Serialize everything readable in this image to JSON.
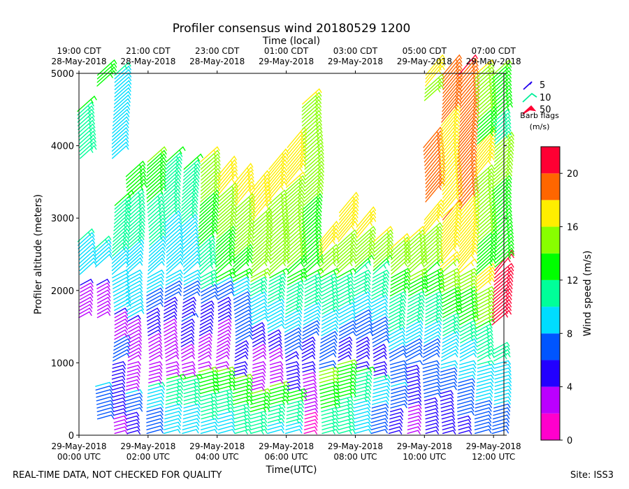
{
  "chart_data": {
    "type": "wind-barb profile",
    "title": "Profiler consensus wind 20180529 1200",
    "top_axis_label": "Time (local)",
    "bottom_axis_label": "Time(UTC)",
    "ylabel": "Profiler altitude (meters)",
    "ylim": [
      0,
      5000
    ],
    "xlim_hours_utc": [
      0,
      12.3
    ],
    "y_ticks": [
      0,
      1000,
      2000,
      3000,
      4000,
      5000
    ],
    "bottom_ticks": [
      {
        "hour": 0,
        "line1": "29-May-2018",
        "line2": "00:00 UTC"
      },
      {
        "hour": 2,
        "line1": "29-May-2018",
        "line2": "02:00 UTC"
      },
      {
        "hour": 4,
        "line1": "29-May-2018",
        "line2": "04:00 UTC"
      },
      {
        "hour": 6,
        "line1": "29-May-2018",
        "line2": "06:00 UTC"
      },
      {
        "hour": 8,
        "line1": "29-May-2018",
        "line2": "08:00 UTC"
      },
      {
        "hour": 10,
        "line1": "29-May-2018",
        "line2": "10:00 UTC"
      },
      {
        "hour": 12,
        "line1": "29-May-2018",
        "line2": "12:00 UTC"
      }
    ],
    "top_ticks": [
      {
        "hour": 0,
        "line1": "19:00 CDT",
        "line2": "28-May-2018"
      },
      {
        "hour": 2,
        "line1": "21:00 CDT",
        "line2": "28-May-2018"
      },
      {
        "hour": 4,
        "line1": "23:00 CDT",
        "line2": "28-May-2018"
      },
      {
        "hour": 6,
        "line1": "01:00 CDT",
        "line2": "29-May-2018"
      },
      {
        "hour": 8,
        "line1": "03:00 CDT",
        "line2": "29-May-2018"
      },
      {
        "hour": 10,
        "line1": "05:00 CDT",
        "line2": "29-May-2018"
      },
      {
        "hour": 12,
        "line1": "07:00 CDT",
        "line2": "29-May-2018"
      }
    ],
    "barb_legend": {
      "title": "Barb flags",
      "units": "(m/s)",
      "items": [
        {
          "label": "5",
          "color": "#2200ee"
        },
        {
          "label": "10",
          "color": "#00ee99"
        },
        {
          "label": "50",
          "color": "#ff0033"
        }
      ]
    },
    "colorbar": {
      "label": "Wind speed (m/s)",
      "range": [
        0,
        22
      ],
      "ticks": [
        "0",
        "4",
        "8",
        "12",
        "16",
        "20"
      ],
      "bins": [
        {
          "from": 0,
          "to": 2,
          "color": "#ff00cc"
        },
        {
          "from": 2,
          "to": 4,
          "color": "#bb00ff"
        },
        {
          "from": 4,
          "to": 6,
          "color": "#2200ff"
        },
        {
          "from": 6,
          "to": 8,
          "color": "#0055ff"
        },
        {
          "from": 8,
          "to": 10,
          "color": "#00ddff"
        },
        {
          "from": 10,
          "to": 12,
          "color": "#00ff99"
        },
        {
          "from": 12,
          "to": 14,
          "color": "#00ff00"
        },
        {
          "from": 14,
          "to": 16,
          "color": "#88ff00"
        },
        {
          "from": 16,
          "to": 18,
          "color": "#ffee00"
        },
        {
          "from": 18,
          "to": 20,
          "color": "#ff6600"
        },
        {
          "from": 20,
          "to": 22,
          "color": "#ff0033"
        }
      ]
    },
    "profiles": [
      {
        "hour": 0.0,
        "segments": [
          [
            1600,
            2100,
            2,
            4
          ],
          [
            2200,
            2700,
            8,
            10
          ],
          [
            3800,
            4500,
            10,
            12
          ]
        ]
      },
      {
        "hour": 0.5,
        "segments": [
          [
            200,
            700,
            6,
            8
          ],
          [
            1600,
            2100,
            2,
            4
          ],
          [
            2300,
            2600,
            8,
            10
          ],
          [
            4800,
            5000,
            12,
            13
          ]
        ]
      },
      {
        "hour": 1.0,
        "segments": [
          [
            0,
            400,
            2,
            5
          ],
          [
            400,
            1300,
            4,
            7
          ],
          [
            1300,
            1700,
            2,
            4
          ],
          [
            1700,
            3200,
            8,
            12
          ],
          [
            3800,
            5000,
            8,
            10
          ]
        ]
      },
      {
        "hour": 1.4,
        "segments": [
          [
            0,
            600,
            4,
            8
          ],
          [
            600,
            1600,
            2,
            4
          ],
          [
            1600,
            2600,
            8,
            10
          ],
          [
            2600,
            3600,
            10,
            13
          ]
        ]
      },
      {
        "hour": 2.0,
        "segments": [
          [
            0,
            700,
            6,
            10
          ],
          [
            700,
            1400,
            2,
            4
          ],
          [
            1400,
            2000,
            4,
            8
          ],
          [
            2000,
            3800,
            8,
            14
          ]
        ]
      },
      {
        "hour": 2.5,
        "segments": [
          [
            0,
            800,
            8,
            12
          ],
          [
            800,
            1600,
            2,
            4
          ],
          [
            1600,
            2100,
            4,
            8
          ],
          [
            2100,
            3800,
            8,
            12
          ]
        ]
      },
      {
        "hour": 3.0,
        "segments": [
          [
            0,
            800,
            8,
            12
          ],
          [
            800,
            1600,
            2,
            6
          ],
          [
            1600,
            2100,
            4,
            8
          ],
          [
            2100,
            3700,
            8,
            12
          ]
        ]
      },
      {
        "hour": 3.5,
        "segments": [
          [
            0,
            900,
            9,
            14
          ],
          [
            900,
            1400,
            2,
            4
          ],
          [
            1400,
            2000,
            4,
            7
          ],
          [
            2000,
            3800,
            10,
            16
          ]
        ]
      },
      {
        "hour": 4.0,
        "segments": [
          [
            0,
            900,
            8,
            14
          ],
          [
            900,
            1600,
            2,
            4
          ],
          [
            1600,
            2100,
            4,
            8
          ],
          [
            2100,
            3600,
            12,
            17
          ]
        ]
      },
      {
        "hour": 4.5,
        "segments": [
          [
            0,
            800,
            10,
            14
          ],
          [
            800,
            1500,
            4,
            7
          ],
          [
            1500,
            2100,
            6,
            9
          ],
          [
            2100,
            3500,
            13,
            17
          ]
        ]
      },
      {
        "hour": 5.0,
        "segments": [
          [
            0,
            600,
            10,
            14
          ],
          [
            600,
            1500,
            2,
            5
          ],
          [
            1500,
            2100,
            8,
            11
          ],
          [
            2100,
            3400,
            14,
            17
          ]
        ]
      },
      {
        "hour": 5.5,
        "segments": [
          [
            0,
            700,
            9,
            14
          ],
          [
            700,
            1400,
            2,
            5
          ],
          [
            1400,
            2200,
            8,
            12
          ],
          [
            2200,
            3700,
            14,
            17
          ]
        ]
      },
      {
        "hour": 6.0,
        "segments": [
          [
            0,
            600,
            9,
            13
          ],
          [
            600,
            1400,
            4,
            7
          ],
          [
            1400,
            2300,
            9,
            13
          ],
          [
            2300,
            4000,
            14,
            17
          ]
        ]
      },
      {
        "hour": 6.5,
        "segments": [
          [
            0,
            900,
            1,
            4
          ],
          [
            900,
            1500,
            4,
            7
          ],
          [
            1500,
            2400,
            9,
            13
          ],
          [
            2400,
            4600,
            13,
            16
          ]
        ]
      },
      {
        "hour": 7.0,
        "segments": [
          [
            0,
            900,
            10,
            15
          ],
          [
            900,
            1400,
            6,
            8
          ],
          [
            1400,
            2200,
            9,
            12
          ],
          [
            2200,
            2700,
            15,
            17
          ]
        ]
      },
      {
        "hour": 7.5,
        "segments": [
          [
            0,
            1000,
            10,
            14
          ],
          [
            1000,
            1500,
            4,
            7
          ],
          [
            1500,
            2200,
            9,
            12
          ],
          [
            2200,
            3100,
            15,
            17
          ]
        ]
      },
      {
        "hour": 8.0,
        "segments": [
          [
            0,
            900,
            8,
            12
          ],
          [
            900,
            1700,
            4,
            8
          ],
          [
            1700,
            2300,
            9,
            12
          ],
          [
            2300,
            2900,
            14,
            17
          ]
        ]
      },
      {
        "hour": 8.5,
        "segments": [
          [
            0,
            800,
            6,
            10
          ],
          [
            800,
            1600,
            4,
            8
          ],
          [
            1600,
            2300,
            9,
            12
          ],
          [
            2300,
            2700,
            14,
            16
          ]
        ]
      },
      {
        "hour": 9.0,
        "segments": [
          [
            0,
            700,
            4,
            8
          ],
          [
            700,
            1400,
            6,
            9
          ],
          [
            1400,
            2200,
            10,
            13
          ],
          [
            2200,
            2600,
            14,
            16
          ]
        ]
      },
      {
        "hour": 9.5,
        "segments": [
          [
            0,
            600,
            2,
            5
          ],
          [
            600,
            1300,
            4,
            8
          ],
          [
            1300,
            2100,
            9,
            13
          ],
          [
            2100,
            2700,
            14,
            16
          ]
        ]
      },
      {
        "hour": 10.0,
        "segments": [
          [
            0,
            800,
            4,
            7
          ],
          [
            800,
            1500,
            6,
            9
          ],
          [
            1500,
            2300,
            10,
            14
          ],
          [
            2300,
            3000,
            14,
            17
          ],
          [
            3200,
            4000,
            18,
            19
          ],
          [
            4600,
            5000,
            15,
            17
          ]
        ]
      },
      {
        "hour": 10.5,
        "segments": [
          [
            0,
            900,
            4,
            7
          ],
          [
            900,
            1600,
            8,
            11
          ],
          [
            1600,
            2300,
            12,
            16
          ],
          [
            2300,
            3000,
            16,
            18
          ],
          [
            3000,
            5000,
            16,
            19
          ]
        ]
      },
      {
        "hour": 11.0,
        "segments": [
          [
            0,
            800,
            5,
            8
          ],
          [
            800,
            1500,
            8,
            11
          ],
          [
            1500,
            2200,
            12,
            15
          ],
          [
            2200,
            3600,
            16,
            19
          ],
          [
            3600,
            5000,
            18,
            20
          ]
        ]
      },
      {
        "hour": 11.5,
        "segments": [
          [
            0,
            700,
            6,
            9
          ],
          [
            700,
            1500,
            9,
            12
          ],
          [
            1500,
            2200,
            14,
            17
          ],
          [
            2200,
            4000,
            13,
            17
          ],
          [
            4000,
            5000,
            13,
            16
          ]
        ]
      },
      {
        "hour": 12.0,
        "segments": [
          [
            0,
            600,
            6,
            9
          ],
          [
            600,
            1200,
            8,
            11
          ],
          [
            1500,
            2300,
            20,
            22
          ],
          [
            2300,
            4000,
            12,
            15
          ],
          [
            4000,
            5000,
            11,
            14
          ]
        ]
      }
    ]
  },
  "footer": {
    "left": "REAL-TIME DATA, NOT CHECKED FOR QUALITY",
    "right": "Site: ISS3"
  }
}
